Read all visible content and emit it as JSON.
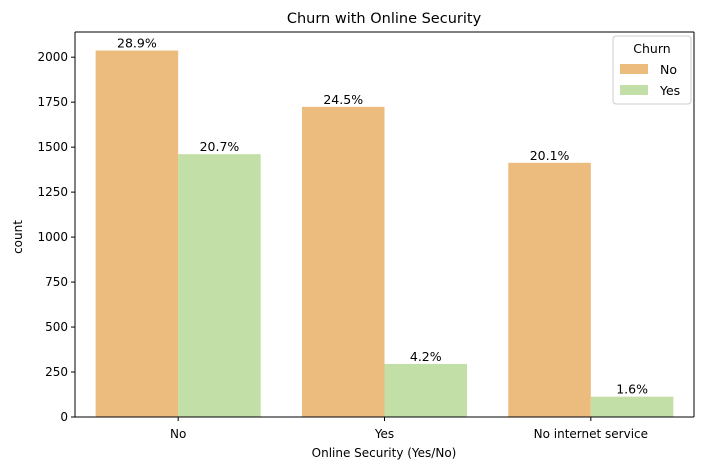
{
  "chart_data": {
    "type": "bar",
    "title": "Churn with Online Security",
    "xlabel": "Online Security (Yes/No)",
    "ylabel": "count",
    "categories": [
      "No",
      "Yes",
      "No internet service"
    ],
    "ylim": [
      0,
      2140
    ],
    "yticks": [
      0,
      250,
      500,
      750,
      1000,
      1250,
      1500,
      1750,
      2000
    ],
    "series": [
      {
        "name": "No",
        "color": "#ebbc7d",
        "values": [
          2037,
          1724,
          1413
        ],
        "labels": [
          "28.9%",
          "24.5%",
          "20.1%"
        ]
      },
      {
        "name": "Yes",
        "color": "#c2dfa7",
        "values": [
          1461,
          295,
          113
        ],
        "labels": [
          "20.7%",
          "4.2%",
          "1.6%"
        ]
      }
    ],
    "legend": {
      "title": "Churn",
      "placement": "top-right"
    },
    "grid": false
  }
}
